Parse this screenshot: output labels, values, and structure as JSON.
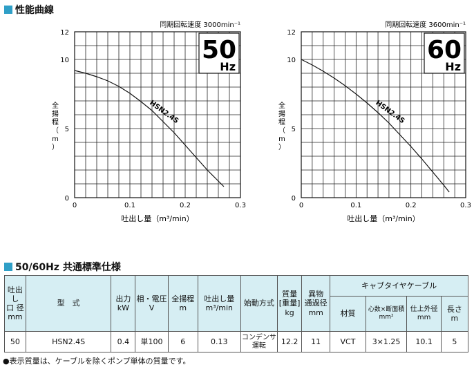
{
  "curve_section_title": "性能曲線",
  "spec_section_title": "50/60Hz 共通標準仕様",
  "chart_data": [
    {
      "type": "line",
      "speed_text": "同期回転速度 3000min⁻¹",
      "freq_big": "50",
      "freq_unit": "Hz",
      "ylabel": "全揚程（m）",
      "xlabel": "吐出し量（m³/min）",
      "xlim": [
        0,
        0.3
      ],
      "ylim": [
        0,
        12
      ],
      "x_ticks": [
        "0",
        "0.1",
        "0.2",
        "0.3"
      ],
      "y_ticks": [
        "0",
        "5",
        "10",
        "12"
      ],
      "grid": true,
      "series": [
        {
          "name": "HSN2.4S",
          "x": [
            0,
            0.02,
            0.04,
            0.06,
            0.08,
            0.1,
            0.12,
            0.14,
            0.16,
            0.18,
            0.2,
            0.22,
            0.24,
            0.26,
            0.27
          ],
          "y": [
            9.2,
            9.0,
            8.75,
            8.45,
            8.05,
            7.55,
            6.95,
            6.3,
            5.5,
            4.7,
            3.8,
            2.9,
            2.0,
            1.2,
            0.8
          ]
        }
      ]
    },
    {
      "type": "line",
      "speed_text": "同期回転速度 3600min⁻¹",
      "freq_big": "60",
      "freq_unit": "Hz",
      "ylabel": "全揚程（m）",
      "xlabel": "吐出し量（m³/min）",
      "xlim": [
        0,
        0.3
      ],
      "ylim": [
        0,
        12
      ],
      "x_ticks": [
        "0",
        "0.1",
        "0.2",
        "0.3"
      ],
      "y_ticks": [
        "0",
        "5",
        "10",
        "12"
      ],
      "grid": true,
      "series": [
        {
          "name": "HSN2.4S",
          "x": [
            0,
            0.02,
            0.04,
            0.06,
            0.08,
            0.1,
            0.12,
            0.14,
            0.16,
            0.18,
            0.2,
            0.22,
            0.24,
            0.26,
            0.27
          ],
          "y": [
            10.0,
            9.6,
            9.15,
            8.65,
            8.1,
            7.5,
            6.85,
            6.15,
            5.4,
            4.55,
            3.7,
            2.8,
            1.85,
            0.9,
            0.4
          ]
        }
      ]
    }
  ],
  "spec_table": {
    "headers": {
      "bore": "吐出し\n口 径\nmm",
      "model": "型　式",
      "output": "出力\nkW",
      "phase_voltage": "相・電圧\nV",
      "head": "全揚程\nm",
      "flow": "吐出し量\nm³/min",
      "start": "始動方式",
      "mass": "質量\n[重量]\nkg",
      "solids": "異物\n通過径\nmm",
      "cable": "キャブタイヤケーブル",
      "cable_material": "材質",
      "cable_cores": "心数×断面積\nmm²",
      "cable_od": "仕上外径\nmm",
      "cable_length": "長さ\nm"
    },
    "row": {
      "bore": "50",
      "model": "HSN2.4S",
      "output": "0.4",
      "phase_voltage": "単100",
      "head": "6",
      "flow": "0.13",
      "start": "コンデンサ\n運転",
      "mass": "12.2",
      "solids": "11",
      "cable_material": "VCT",
      "cable_cores": "3×1.25",
      "cable_od": "10.1",
      "cable_length": "5"
    }
  },
  "note": "●表示質量は、ケーブルを除くポンプ単体の質量です。",
  "colors": {
    "accent": "#2f9fc7",
    "header_bg": "#d6eef3"
  }
}
